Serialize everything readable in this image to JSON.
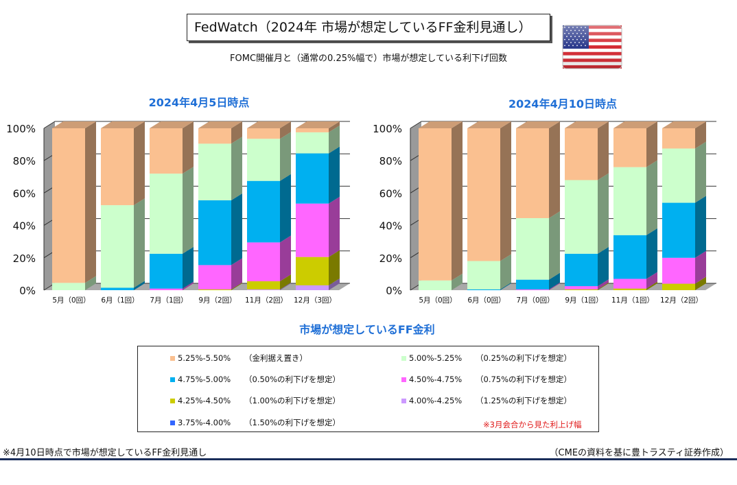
{
  "header": {
    "title": "FedWatch（2024年  市場が想定しているFF金利見通し）",
    "subtitle": "FOMC開催月と（通常の0.25%幅で）市場が想定している利下げ回数"
  },
  "icons": {
    "flag": "us-flag-icon"
  },
  "colors": {
    "bar_side": "#8c8c8c",
    "floor": "#a9a9a9",
    "title_blue": "#1f6fd6",
    "note_red": "#e01818"
  },
  "series_defs": [
    {
      "name": "5.25%-5.50%",
      "desc": "（金利据え置き）",
      "color": "#fac090"
    },
    {
      "name": "5.00%-5.25%",
      "desc": "（0.25%の利下げを想定）",
      "color": "#ccffcc"
    },
    {
      "name": "4.75%-5.00%",
      "desc": "（0.50%の利下げを想定）",
      "color": "#00b0f0"
    },
    {
      "name": "4.50%-4.75%",
      "desc": "（0.75%の利下げを想定）",
      "color": "#ff66ff"
    },
    {
      "name": "4.25%-4.50%",
      "desc": "（1.00%の利下げを想定）",
      "color": "#cccc00"
    },
    {
      "name": "4.00%-4.25%",
      "desc": "（1.25%の利下げを想定）",
      "color": "#cc99ff"
    },
    {
      "name": "3.75%-4.00%",
      "desc": "（1.50%の利下げを想定）",
      "color": "#3366ff"
    }
  ],
  "legend": {
    "title": "市場が想定しているFF金利",
    "note": "※3月会合から見た利上げ幅"
  },
  "chart_data": [
    {
      "type": "bar",
      "stacked": true,
      "title": "2024年4月5日時点",
      "categories": [
        "5月（0回）",
        "6月（1回）",
        "7月（1回）",
        "9月（2回）",
        "11月（2回）",
        "12月（3回）"
      ],
      "ylim": [
        0,
        100
      ],
      "ytick_labels": [
        "0%",
        "20%",
        "40%",
        "60%",
        "80%",
        "100%"
      ],
      "grid": true,
      "series": [
        {
          "name": "3.75%-4.00%",
          "values": [
            0,
            0,
            0,
            0,
            0,
            0
          ]
        },
        {
          "name": "4.00%-4.25%",
          "values": [
            0,
            0,
            0,
            0,
            0.5,
            3
          ]
        },
        {
          "name": "4.25%-4.50%",
          "values": [
            0,
            0,
            0,
            0.5,
            5,
            17.5
          ]
        },
        {
          "name": "4.50%-4.75%",
          "values": [
            0,
            0,
            1,
            15,
            24,
            33
          ]
        },
        {
          "name": "4.75%-5.00%",
          "values": [
            0,
            1.5,
            21.5,
            40,
            38,
            31
          ]
        },
        {
          "name": "5.00%-5.25%",
          "values": [
            4.5,
            51,
            49.5,
            35,
            26,
            13
          ]
        },
        {
          "name": "5.25%-5.50%",
          "values": [
            95.5,
            47.5,
            28,
            9.5,
            6.5,
            2.5
          ]
        }
      ]
    },
    {
      "type": "bar",
      "stacked": true,
      "title": "2024年4月10日時点",
      "categories": [
        "5月（0回）",
        "6月（0回）",
        "7月（0回）",
        "9月（1回）",
        "11月（1回）",
        "12月（2回）"
      ],
      "ylim": [
        0,
        100
      ],
      "ytick_labels": [
        "0%",
        "20%",
        "40%",
        "60%",
        "80%",
        "100%"
      ],
      "grid": true,
      "series": [
        {
          "name": "3.75%-4.00%",
          "values": [
            0,
            0,
            0,
            0,
            0,
            0
          ]
        },
        {
          "name": "4.00%-4.25%",
          "values": [
            0,
            0,
            0,
            0,
            0,
            0
          ]
        },
        {
          "name": "4.25%-4.50%",
          "values": [
            0,
            0,
            0,
            0.5,
            1,
            4
          ]
        },
        {
          "name": "4.50%-4.75%",
          "values": [
            0,
            0,
            0.5,
            2,
            6,
            16
          ]
        },
        {
          "name": "4.75%-5.00%",
          "values": [
            0,
            0.5,
            6,
            20,
            27,
            34
          ]
        },
        {
          "name": "5.00%-5.25%",
          "values": [
            6,
            17.5,
            38,
            45.5,
            42,
            33.5
          ]
        },
        {
          "name": "5.25%-5.50%",
          "values": [
            94,
            82,
            55.5,
            32,
            24,
            12.5
          ]
        }
      ]
    }
  ],
  "footer": {
    "note": "※4月10日時点で市場が想定しているFF金利見通し",
    "source": "（CMEの資料を基に豊トラスティ証券作成）"
  }
}
